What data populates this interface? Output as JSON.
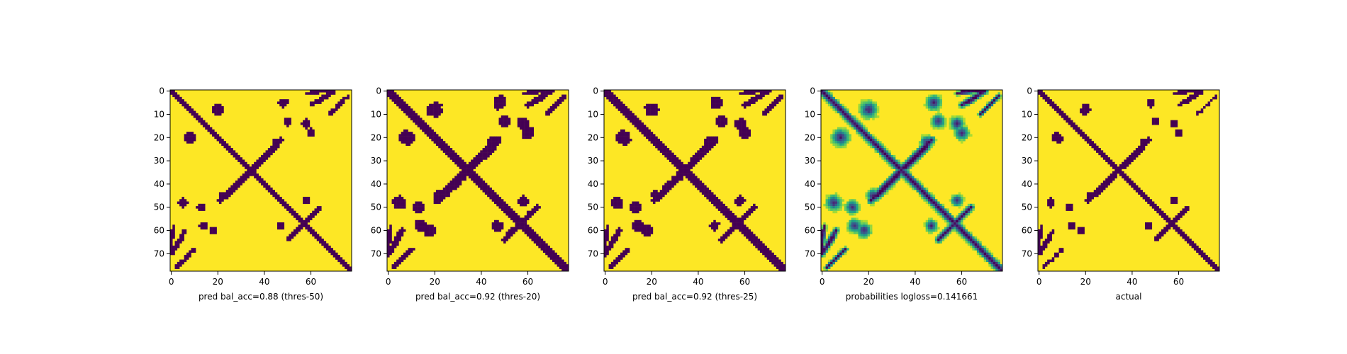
{
  "chart_data": [
    {
      "type": "heatmap",
      "title": "pred bal_acc=0.88 (thres-50)",
      "colormap": "viridis",
      "values": "binary",
      "xlim": [
        0,
        78
      ],
      "ylim": [
        78,
        0
      ],
      "xticks": [
        0,
        20,
        40,
        60
      ],
      "yticks": [
        0,
        10,
        20,
        30,
        40,
        50,
        60,
        70
      ],
      "grid": false
    },
    {
      "type": "heatmap",
      "title": "pred bal_acc=0.92 (thres-20)",
      "colormap": "viridis",
      "values": "binary",
      "xlim": [
        0,
        78
      ],
      "ylim": [
        78,
        0
      ],
      "xticks": [
        0,
        20,
        40,
        60
      ],
      "yticks": [
        0,
        10,
        20,
        30,
        40,
        50,
        60,
        70
      ],
      "grid": false
    },
    {
      "type": "heatmap",
      "title": "pred bal_acc=0.92 (thres-25)",
      "colormap": "viridis",
      "values": "binary",
      "xlim": [
        0,
        78
      ],
      "ylim": [
        78,
        0
      ],
      "xticks": [
        0,
        20,
        40,
        60
      ],
      "yticks": [
        0,
        10,
        20,
        30,
        40,
        50,
        60,
        70
      ],
      "grid": false
    },
    {
      "type": "heatmap",
      "title": "probabilities logloss=0.141661",
      "colormap": "viridis",
      "values": "continuous",
      "xlim": [
        0,
        78
      ],
      "ylim": [
        78,
        0
      ],
      "xticks": [
        0,
        20,
        40,
        60
      ],
      "yticks": [
        0,
        10,
        20,
        30,
        40,
        50,
        60,
        70
      ],
      "grid": false
    },
    {
      "type": "heatmap",
      "title": "actual",
      "colormap": "viridis",
      "values": "binary",
      "xlim": [
        0,
        78
      ],
      "ylim": [
        78,
        0
      ],
      "xticks": [
        0,
        20,
        40,
        60
      ],
      "yticks": [
        0,
        10,
        20,
        30,
        40,
        50,
        60,
        70
      ],
      "grid": false
    }
  ],
  "colors": {
    "low": "#440154",
    "mid": "#21918c",
    "high": "#fde725"
  }
}
